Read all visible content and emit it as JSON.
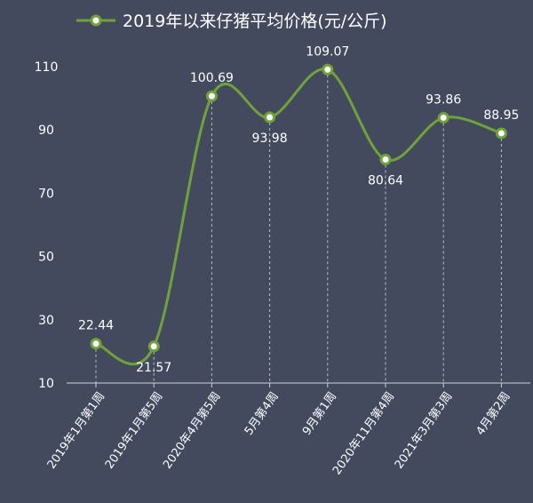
{
  "chart_data": {
    "type": "line",
    "title": "2019年以来仔猪平均价格(元/公斤)",
    "categories": [
      "2019年1月第1周",
      "2019年1月第5周",
      "2020年4月第5周",
      "5月第4周",
      "9月第1周",
      "2020年11月第4周",
      "2021年3月第3周",
      "4月第2周"
    ],
    "series": [
      {
        "name": "2019年以来仔猪平均价格(元/公斤)",
        "values": [
          22.44,
          21.57,
          100.69,
          93.98,
          109.07,
          80.64,
          93.86,
          88.95
        ]
      }
    ],
    "data_labels": [
      "22.44",
      "21.57",
      "100.69",
      "93.98",
      "109.07",
      "80.64",
      "93.86",
      "88.95"
    ],
    "label_position": [
      "above",
      "below",
      "above",
      "below",
      "above",
      "below",
      "above",
      "above"
    ],
    "ylim": [
      10,
      110
    ],
    "yticks": [
      10,
      30,
      50,
      70,
      90,
      110
    ],
    "xlabel": "",
    "ylabel": "",
    "grid": false,
    "drop_lines": true,
    "smooth": true,
    "legend_position": "top",
    "colors": {
      "background": "#434a5e",
      "line": "#6fa33a",
      "marker_fill": "#ffffff",
      "text": "#ffffff",
      "axis": "#cfd3dc",
      "drop_line": "#b8bcc6"
    }
  }
}
